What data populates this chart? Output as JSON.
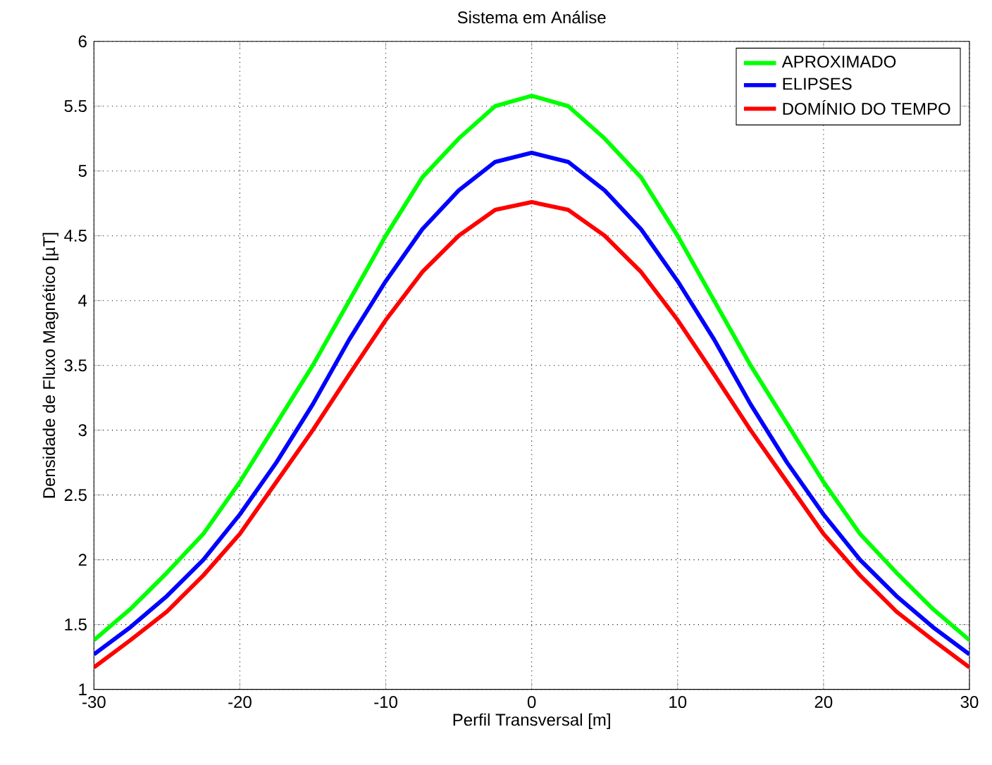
{
  "chart_data": {
    "type": "line",
    "title": "Sistema em Análise",
    "xlabel": "Perfil Transversal [m]",
    "ylabel": "Densidade de Fluxo Magnético [µT]",
    "x": [
      -30,
      -27.5,
      -25,
      -22.5,
      -20,
      -17.5,
      -15,
      -12.5,
      -10,
      -7.5,
      -5,
      -2.5,
      0,
      2.5,
      5,
      7.5,
      10,
      12.5,
      15,
      17.5,
      20,
      22.5,
      25,
      27.5,
      30
    ],
    "series": [
      {
        "name": "APROXIMADO",
        "color": "#00ff00",
        "values": [
          1.38,
          1.62,
          1.9,
          2.2,
          2.6,
          3.05,
          3.5,
          4.0,
          4.5,
          4.95,
          5.25,
          5.5,
          5.58,
          5.5,
          5.25,
          4.95,
          4.5,
          4.0,
          3.5,
          3.05,
          2.6,
          2.2,
          1.9,
          1.62,
          1.38
        ]
      },
      {
        "name": "ELIPSES",
        "color": "#0000ff",
        "values": [
          1.27,
          1.48,
          1.72,
          2.0,
          2.35,
          2.75,
          3.2,
          3.7,
          4.15,
          4.55,
          4.85,
          5.07,
          5.14,
          5.07,
          4.85,
          4.55,
          4.15,
          3.7,
          3.2,
          2.75,
          2.35,
          2.0,
          1.72,
          1.48,
          1.27
        ]
      },
      {
        "name": "DOMÍNIO DO TEMPO",
        "color": "#ff0000",
        "values": [
          1.17,
          1.38,
          1.6,
          1.88,
          2.2,
          2.6,
          3.0,
          3.43,
          3.85,
          4.22,
          4.5,
          4.7,
          4.76,
          4.7,
          4.5,
          4.22,
          3.85,
          3.43,
          3.0,
          2.6,
          2.2,
          1.88,
          1.6,
          1.38,
          1.17
        ]
      }
    ],
    "xlim": [
      -30,
      30
    ],
    "ylim": [
      1,
      6
    ],
    "xticks": [
      -30,
      -20,
      -10,
      0,
      10,
      20,
      30
    ],
    "yticks": [
      1,
      1.5,
      2,
      2.5,
      3,
      3.5,
      4,
      4.5,
      5,
      5.5,
      6
    ],
    "grid": true,
    "legend": "top right"
  }
}
